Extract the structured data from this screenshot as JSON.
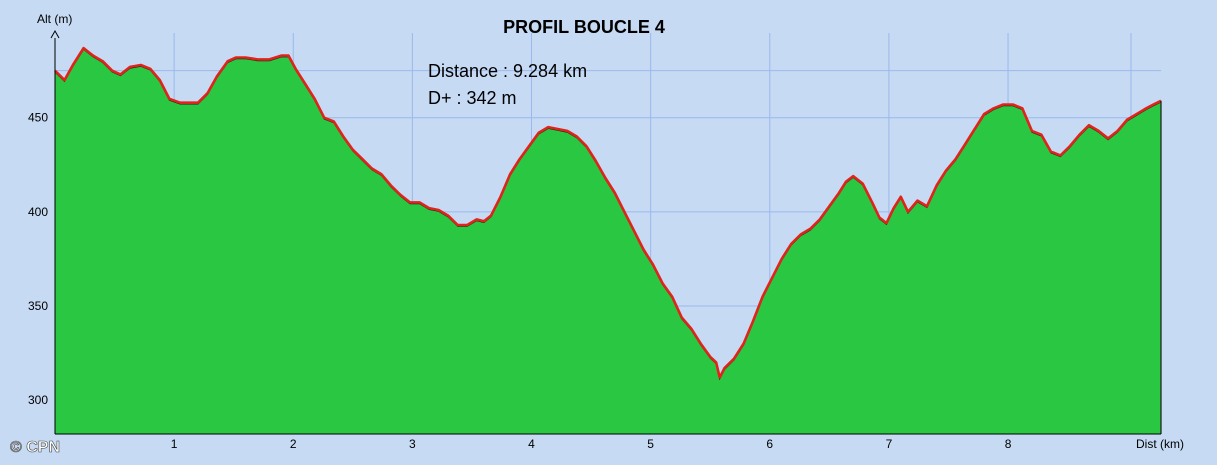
{
  "chart_data": {
    "type": "area",
    "title": "PROFIL BOUCLE 4",
    "xlabel": "Dist (km)",
    "ylabel": "Alt (m)",
    "xlim": [
      0,
      9.284
    ],
    "ylim": [
      282,
      495
    ],
    "x_ticks": [
      1,
      2,
      3,
      4,
      5,
      6,
      7,
      8
    ],
    "y_ticks": [
      300,
      350,
      400,
      450
    ],
    "grid": true,
    "annotations": [
      "Distance : 9.284 km",
      "D+ : 342 m"
    ],
    "watermark": "© CPN",
    "colors": {
      "background": "#c6daf4",
      "fill": "#2ac842",
      "line": "#e0241c",
      "grid": "#9cb8ec"
    },
    "series": [
      {
        "x": [
          0,
          0.08,
          0.15,
          0.24,
          0.32,
          0.4,
          0.48,
          0.55,
          0.63,
          0.72,
          0.8,
          0.88,
          0.96,
          1.05,
          1.14,
          1.2,
          1.28,
          1.36,
          1.45,
          1.52,
          1.6,
          1.7,
          1.8,
          1.9,
          1.96,
          2.02,
          2.1,
          2.18,
          2.26,
          2.34,
          2.42,
          2.5,
          2.58,
          2.66,
          2.74,
          2.82,
          2.9,
          2.98,
          3.06,
          3.14,
          3.22,
          3.3,
          3.38,
          3.46,
          3.54,
          3.6,
          3.66,
          3.74,
          3.82,
          3.9,
          3.98,
          4.06,
          4.14,
          4.22,
          4.3,
          4.38,
          4.46,
          4.54,
          4.62,
          4.7,
          4.78,
          4.86,
          4.94,
          5.02,
          5.1,
          5.18,
          5.26,
          5.34,
          5.42,
          5.5,
          5.55,
          5.58,
          5.62,
          5.7,
          5.78,
          5.86,
          5.94,
          6.02,
          6.1,
          6.18,
          6.26,
          6.34,
          6.42,
          6.5,
          6.58,
          6.64,
          6.7,
          6.78,
          6.86,
          6.92,
          6.98,
          7.04,
          7.1,
          7.16,
          7.24,
          7.32,
          7.4,
          7.48,
          7.56,
          7.64,
          7.72,
          7.8,
          7.88,
          7.96,
          8.04,
          8.12,
          8.2,
          8.28,
          8.36,
          8.44,
          8.52,
          8.6,
          8.68,
          8.76,
          8.84,
          8.92,
          9.0,
          9.08,
          9.16,
          9.22,
          9.284
        ],
        "y": [
          475,
          470,
          478,
          487,
          483,
          480,
          475,
          473,
          477,
          478,
          476,
          470,
          460,
          458,
          458,
          458,
          463,
          472,
          480,
          482,
          482,
          481,
          481,
          483,
          483,
          476,
          468,
          460,
          450,
          448,
          440,
          433,
          428,
          423,
          420,
          414,
          409,
          405,
          405,
          402,
          401,
          398,
          393,
          393,
          396,
          395,
          398,
          408,
          420,
          428,
          435,
          442,
          445,
          444,
          443,
          440,
          435,
          427,
          418,
          410,
          400,
          390,
          380,
          372,
          362,
          355,
          344,
          338,
          330,
          323,
          320,
          312,
          317,
          322,
          330,
          342,
          355,
          365,
          375,
          383,
          388,
          391,
          396,
          403,
          410,
          416,
          419,
          415,
          405,
          397,
          394,
          402,
          408,
          400,
          406,
          403,
          414,
          422,
          428,
          436,
          444,
          452,
          455,
          457,
          457,
          455,
          443,
          441,
          432,
          430,
          435,
          441,
          446,
          443,
          439,
          443,
          449,
          452,
          455,
          457,
          459
        ]
      }
    ]
  }
}
